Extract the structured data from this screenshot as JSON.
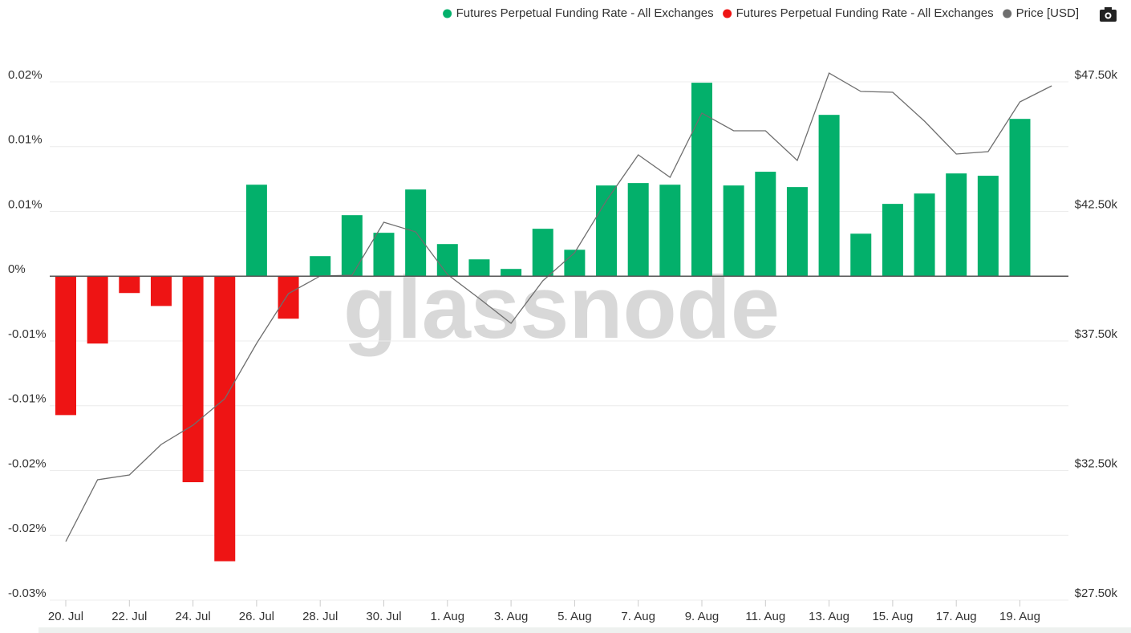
{
  "chart_data": {
    "type": "bar",
    "watermark": "glassnode",
    "categories": [
      "20. Jul",
      null,
      "22. Jul",
      null,
      "24. Jul",
      null,
      "26. Jul",
      null,
      "28. Jul",
      null,
      "30. Jul",
      null,
      "1. Aug",
      null,
      "3. Aug",
      null,
      "5. Aug",
      null,
      "7. Aug",
      null,
      "9. Aug",
      null,
      "11. Aug",
      null,
      "13. Aug",
      null,
      "15. Aug",
      null,
      "17. Aug",
      null,
      "19. Aug",
      null
    ],
    "series": [
      {
        "name": "Futures Perpetual Funding Rate - All Exchanges",
        "color": "#03b06b",
        "type": "bar",
        "values": [
          null,
          null,
          null,
          null,
          null,
          null,
          0.00706,
          null,
          0.00155,
          0.00471,
          0.00335,
          0.00669,
          0.00248,
          0.0013,
          0.00056,
          0.00366,
          0.00204,
          0.007,
          0.00719,
          0.00706,
          0.01493,
          0.007,
          0.00806,
          0.00688,
          0.01245,
          0.00328,
          0.00558,
          0.00638,
          0.00793,
          0.00775,
          0.01214,
          null
        ]
      },
      {
        "name": "Futures Perpetual Funding Rate - All Exchanges",
        "color": "#ee1414",
        "type": "bar",
        "values": [
          -0.01072,
          -0.0052,
          -0.0013,
          -0.0023,
          -0.0159,
          -0.022,
          null,
          -0.00328,
          null,
          null,
          null,
          null,
          null,
          null,
          null,
          null,
          null,
          null,
          null,
          null,
          null,
          null,
          null,
          null,
          null,
          null,
          null,
          null,
          null,
          null,
          null,
          null
        ]
      },
      {
        "name": "Price [USD]",
        "color": "#6e6e6e",
        "type": "line",
        "axis": "y2",
        "values": [
          29760,
          32144,
          32330,
          33506,
          34250,
          35271,
          37407,
          39327,
          40008,
          40039,
          42082,
          41710,
          40070,
          39141,
          38181,
          39822,
          40906,
          42918,
          44683,
          43816,
          46293,
          45612,
          45612,
          44466,
          47840,
          47128,
          47098,
          45983,
          44714,
          44807,
          46726,
          47345
        ]
      }
    ],
    "ylim": [
      -0.025,
      0.015
    ],
    "yticks": [
      {
        "value": 0.015,
        "label": "0.02%"
      },
      {
        "value": 0.01,
        "label": "0.01%"
      },
      {
        "value": 0.005,
        "label": "0.01%"
      },
      {
        "value": 0,
        "label": "0%"
      },
      {
        "value": -0.005,
        "label": "-0.01%"
      },
      {
        "value": -0.01,
        "label": "-0.01%"
      },
      {
        "value": -0.015,
        "label": "-0.02%"
      },
      {
        "value": -0.02,
        "label": "-0.02%"
      },
      {
        "value": -0.025,
        "label": "-0.03%"
      }
    ],
    "y2lim": [
      27500,
      47500
    ],
    "y2ticks": [
      {
        "value": 47500,
        "label": "$47.50k"
      },
      {
        "value": 42500,
        "label": "$42.50k"
      },
      {
        "value": 37500,
        "label": "$37.50k"
      },
      {
        "value": 32500,
        "label": "$32.50k"
      },
      {
        "value": 27500,
        "label": "$27.50k"
      }
    ],
    "grid": true
  }
}
